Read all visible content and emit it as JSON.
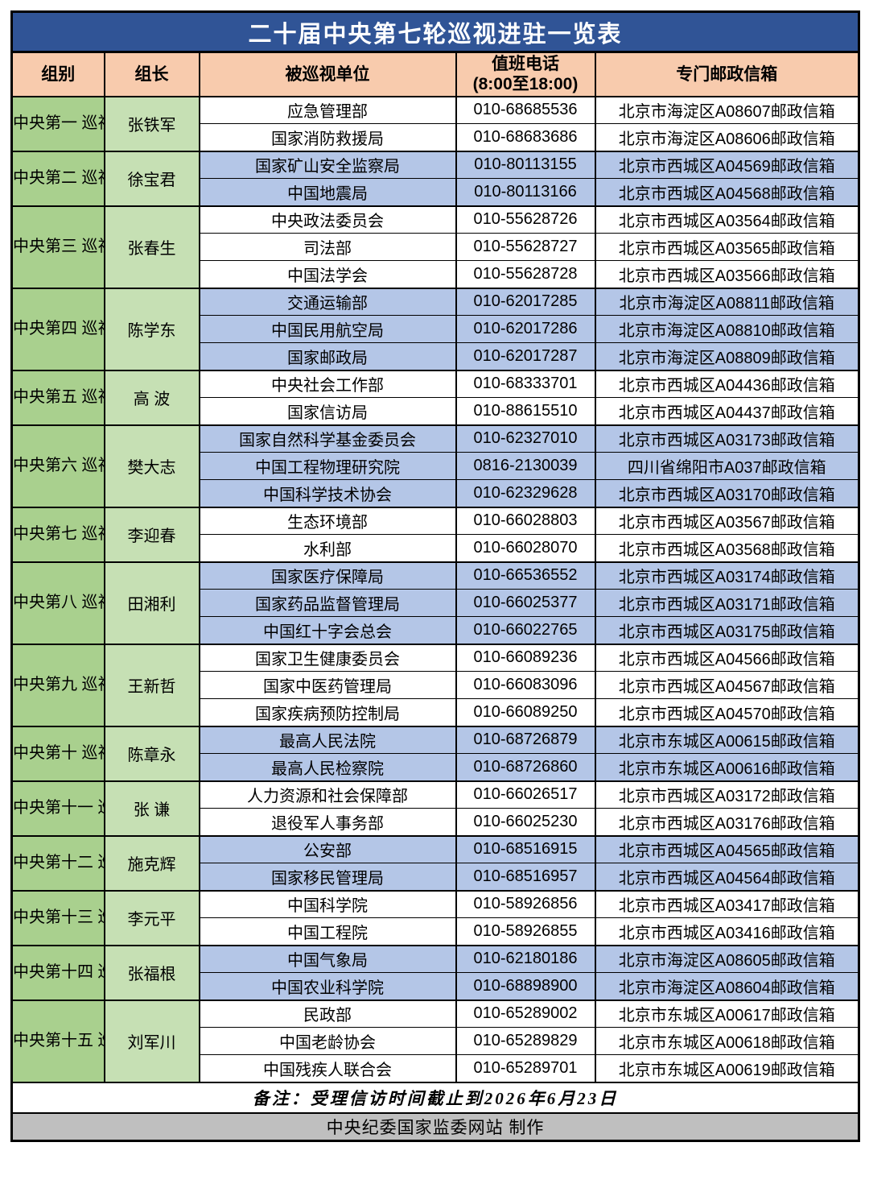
{
  "title": "二十届中央第七轮巡视进驻一览表",
  "columns": [
    "组别",
    "组长",
    "被巡视单位",
    "值班电话\n(8:00至18:00)",
    "专门邮政信箱"
  ],
  "groups": [
    {
      "name": "中央第一\n巡视组",
      "leader": "张铁军",
      "shade": "white",
      "units": [
        {
          "unit": "应急管理部",
          "phone": "010-68685536",
          "mailbox": "北京市海淀区A08607邮政信箱"
        },
        {
          "unit": "国家消防救援局",
          "phone": "010-68683686",
          "mailbox": "北京市海淀区A08606邮政信箱"
        }
      ]
    },
    {
      "name": "中央第二\n巡视组",
      "leader": "徐宝君",
      "shade": "blue",
      "units": [
        {
          "unit": "国家矿山安全监察局",
          "phone": "010-80113155",
          "mailbox": "北京市西城区A04569邮政信箱"
        },
        {
          "unit": "中国地震局",
          "phone": "010-80113166",
          "mailbox": "北京市西城区A04568邮政信箱"
        }
      ]
    },
    {
      "name": "中央第三\n巡视组",
      "leader": "张春生",
      "shade": "white",
      "units": [
        {
          "unit": "中央政法委员会",
          "phone": "010-55628726",
          "mailbox": "北京市西城区A03564邮政信箱"
        },
        {
          "unit": "司法部",
          "phone": "010-55628727",
          "mailbox": "北京市西城区A03565邮政信箱"
        },
        {
          "unit": "中国法学会",
          "phone": "010-55628728",
          "mailbox": "北京市西城区A03566邮政信箱"
        }
      ]
    },
    {
      "name": "中央第四\n巡视组",
      "leader": "陈学东",
      "shade": "blue",
      "units": [
        {
          "unit": "交通运输部",
          "phone": "010-62017285",
          "mailbox": "北京市海淀区A08811邮政信箱"
        },
        {
          "unit": "中国民用航空局",
          "phone": "010-62017286",
          "mailbox": "北京市海淀区A08810邮政信箱"
        },
        {
          "unit": "国家邮政局",
          "phone": "010-62017287",
          "mailbox": "北京市海淀区A08809邮政信箱"
        }
      ]
    },
    {
      "name": "中央第五\n巡视组",
      "leader": "高 波",
      "shade": "white",
      "units": [
        {
          "unit": "中央社会工作部",
          "phone": "010-68333701",
          "mailbox": "北京市西城区A04436邮政信箱"
        },
        {
          "unit": "国家信访局",
          "phone": "010-88615510",
          "mailbox": "北京市西城区A04437邮政信箱"
        }
      ]
    },
    {
      "name": "中央第六\n巡视组",
      "leader": "樊大志",
      "shade": "blue",
      "units": [
        {
          "unit": "国家自然科学基金委员会",
          "phone": "010-62327010",
          "mailbox": "北京市西城区A03173邮政信箱"
        },
        {
          "unit": "中国工程物理研究院",
          "phone": "0816-2130039",
          "mailbox": "四川省绵阳市A037邮政信箱"
        },
        {
          "unit": "中国科学技术协会",
          "phone": "010-62329628",
          "mailbox": "北京市西城区A03170邮政信箱"
        }
      ]
    },
    {
      "name": "中央第七\n巡视组",
      "leader": "李迎春",
      "shade": "white",
      "units": [
        {
          "unit": "生态环境部",
          "phone": "010-66028803",
          "mailbox": "北京市西城区A03567邮政信箱"
        },
        {
          "unit": "水利部",
          "phone": "010-66028070",
          "mailbox": "北京市西城区A03568邮政信箱"
        }
      ]
    },
    {
      "name": "中央第八\n巡视组",
      "leader": "田湘利",
      "shade": "blue",
      "units": [
        {
          "unit": "国家医疗保障局",
          "phone": "010-66536552",
          "mailbox": "北京市西城区A03174邮政信箱"
        },
        {
          "unit": "国家药品监督管理局",
          "phone": "010-66025377",
          "mailbox": "北京市西城区A03171邮政信箱"
        },
        {
          "unit": "中国红十字会总会",
          "phone": "010-66022765",
          "mailbox": "北京市西城区A03175邮政信箱"
        }
      ]
    },
    {
      "name": "中央第九\n巡视组",
      "leader": "王新哲",
      "shade": "white",
      "units": [
        {
          "unit": "国家卫生健康委员会",
          "phone": "010-66089236",
          "mailbox": "北京市西城区A04566邮政信箱"
        },
        {
          "unit": "国家中医药管理局",
          "phone": "010-66083096",
          "mailbox": "北京市西城区A04567邮政信箱"
        },
        {
          "unit": "国家疾病预防控制局",
          "phone": "010-66089250",
          "mailbox": "北京市西城区A04570邮政信箱"
        }
      ]
    },
    {
      "name": "中央第十\n巡视组",
      "leader": "陈章永",
      "shade": "blue",
      "units": [
        {
          "unit": "最高人民法院",
          "phone": "010-68726879",
          "mailbox": "北京市东城区A00615邮政信箱"
        },
        {
          "unit": "最高人民检察院",
          "phone": "010-68726860",
          "mailbox": "北京市东城区A00616邮政信箱"
        }
      ]
    },
    {
      "name": "中央第十一\n巡视组",
      "leader": "张 谦",
      "shade": "white",
      "units": [
        {
          "unit": "人力资源和社会保障部",
          "phone": "010-66026517",
          "mailbox": "北京市西城区A03172邮政信箱"
        },
        {
          "unit": "退役军人事务部",
          "phone": "010-66025230",
          "mailbox": "北京市西城区A03176邮政信箱"
        }
      ]
    },
    {
      "name": "中央第十二\n巡视组",
      "leader": "施克辉",
      "shade": "blue",
      "units": [
        {
          "unit": "公安部",
          "phone": "010-68516915",
          "mailbox": "北京市西城区A04565邮政信箱"
        },
        {
          "unit": "国家移民管理局",
          "phone": "010-68516957",
          "mailbox": "北京市西城区A04564邮政信箱"
        }
      ]
    },
    {
      "name": "中央第十三\n巡视组",
      "leader": "李元平",
      "shade": "white",
      "units": [
        {
          "unit": "中国科学院",
          "phone": "010-58926856",
          "mailbox": "北京市西城区A03417邮政信箱"
        },
        {
          "unit": "中国工程院",
          "phone": "010-58926855",
          "mailbox": "北京市西城区A03416邮政信箱"
        }
      ]
    },
    {
      "name": "中央第十四\n巡视组",
      "leader": "张福根",
      "shade": "blue",
      "units": [
        {
          "unit": "中国气象局",
          "phone": "010-62180186",
          "mailbox": "北京市海淀区A08605邮政信箱"
        },
        {
          "unit": "中国农业科学院",
          "phone": "010-68898900",
          "mailbox": "北京市海淀区A08604邮政信箱"
        }
      ]
    },
    {
      "name": "中央第十五\n巡视组",
      "leader": "刘军川",
      "shade": "white",
      "units": [
        {
          "unit": "民政部",
          "phone": "010-65289002",
          "mailbox": "北京市东城区A00617邮政信箱"
        },
        {
          "unit": "中国老龄协会",
          "phone": "010-65289829",
          "mailbox": "北京市东城区A00618邮政信箱"
        },
        {
          "unit": "中国残疾人联合会",
          "phone": "010-65289701",
          "mailbox": "北京市东城区A00619邮政信箱"
        }
      ]
    }
  ],
  "remark": "备注：受理信访时间截止到2026年6月23日",
  "footer_credit": "中央纪委国家监委网站 制作",
  "colors": {
    "title_bg": "#305496",
    "title_text": "#ffffff",
    "header_bg": "#f8cbad",
    "group_bg": "#a9d08e",
    "leader_bg": "#c6e0b4",
    "row_blue": "#b4c6e7",
    "row_white": "#ffffff",
    "footer_bg": "#bfbfbf",
    "border": "#000000"
  }
}
